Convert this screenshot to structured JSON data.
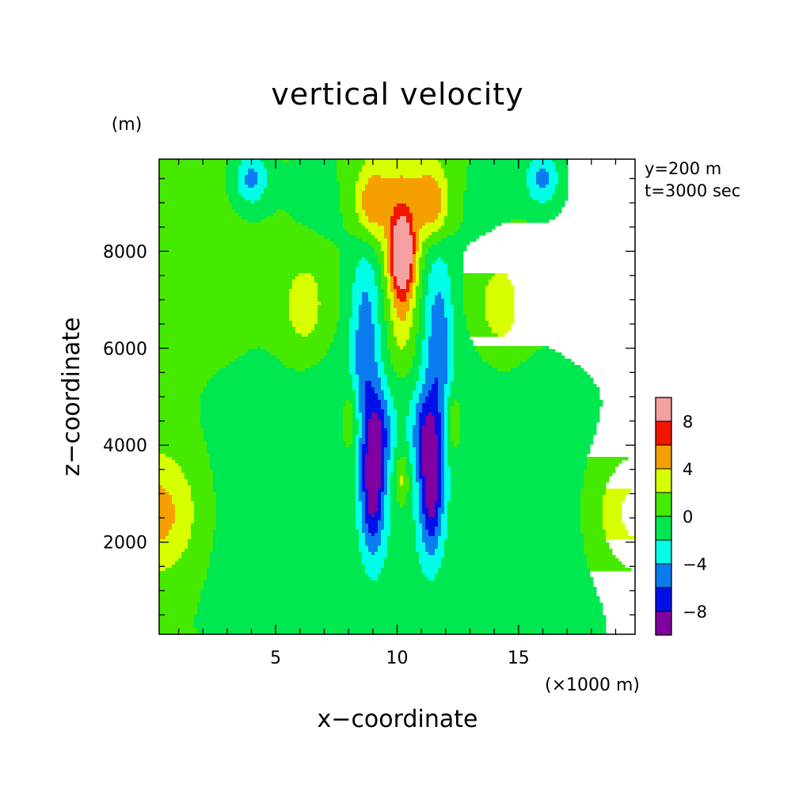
{
  "chart_data": {
    "type": "contour",
    "title": "vertical velocity",
    "xlabel": "x−coordinate",
    "ylabel": "z−coordinate",
    "x_unit": "(×1000 m)",
    "y_unit": "(m)",
    "annotations": [
      "y=200 m",
      "t=3000 sec"
    ],
    "xlim": [
      0.2,
      19.8
    ],
    "ylim": [
      100,
      9900
    ],
    "x_ticks": [
      5,
      10,
      15
    ],
    "x_tick_labels": [
      "5",
      "10",
      "15"
    ],
    "y_ticks": [
      2000,
      4000,
      6000,
      8000
    ],
    "y_tick_labels": [
      "2000",
      "4000",
      "6000",
      "8000"
    ],
    "colorbar": {
      "levels": [
        -10,
        -8,
        -6,
        -4,
        -2,
        0,
        2,
        4,
        6,
        8,
        10
      ],
      "labels": [
        "−8",
        "−4",
        "0",
        "4",
        "8"
      ],
      "label_values": [
        -8,
        -4,
        0,
        4,
        8
      ],
      "colors": [
        "#8000a0",
        "#0010e8",
        "#0a7cf0",
        "#00ffe6",
        "#00e84f",
        "#46ea00",
        "#d8ff00",
        "#f5a000",
        "#f21500",
        "#f5a0a0"
      ]
    },
    "field": {
      "background": 0.5,
      "features": [
        {
          "name": "upper-central-updraft",
          "x": 10.2,
          "z": 8000,
          "sx": 0.4,
          "sz": 600,
          "amp": 10.5
        },
        {
          "name": "upper-central-updraft-stem",
          "x": 10.2,
          "z": 6800,
          "sx": 0.35,
          "sz": 900,
          "amp": 4.0
        },
        {
          "name": "upper-central-updraft-top",
          "x": 10.2,
          "z": 9400,
          "sx": 1.4,
          "sz": 700,
          "amp": 3.2
        },
        {
          "name": "upper-left-lobe",
          "x": 8.9,
          "z": 8900,
          "sx": 0.45,
          "sz": 500,
          "amp": 4.8
        },
        {
          "name": "upper-right-lobe",
          "x": 11.5,
          "z": 8900,
          "sx": 0.45,
          "sz": 500,
          "amp": 4.8
        },
        {
          "name": "left-downdraft-column",
          "x": 8.7,
          "z": 6000,
          "sx": 0.45,
          "sz": 1600,
          "amp": -5.6
        },
        {
          "name": "right-downdraft-column",
          "x": 11.7,
          "z": 6000,
          "sx": 0.45,
          "sz": 1600,
          "amp": -5.6
        },
        {
          "name": "left-lower-downdraft",
          "x": 9.0,
          "z": 3000,
          "sx": 0.35,
          "sz": 900,
          "amp": -7.8
        },
        {
          "name": "right-lower-downdraft",
          "x": 11.4,
          "z": 3000,
          "sx": 0.35,
          "sz": 900,
          "amp": -7.8
        },
        {
          "name": "left-mid-downdraft",
          "x": 9.3,
          "z": 4300,
          "sx": 0.4,
          "sz": 700,
          "amp": -5.2
        },
        {
          "name": "right-mid-downdraft",
          "x": 11.1,
          "z": 4300,
          "sx": 0.4,
          "sz": 700,
          "amp": -5.2
        },
        {
          "name": "left-upper-cyan-spot",
          "x": 4.0,
          "z": 9500,
          "sx": 0.5,
          "sz": 400,
          "amp": -5.0
        },
        {
          "name": "right-upper-cyan-spot",
          "x": 16.0,
          "z": 9500,
          "sx": 0.5,
          "sz": 400,
          "amp": -5.0
        },
        {
          "name": "left-edge-yellow",
          "x": 0.2,
          "z": 2600,
          "sx": 1.2,
          "sz": 900,
          "amp": 4.8
        },
        {
          "name": "right-edge-yellow",
          "x": 19.8,
          "z": 2600,
          "sx": 1.2,
          "sz": 900,
          "amp": 4.8
        },
        {
          "name": "left-mid-yellow",
          "x": 6.2,
          "z": 6800,
          "sx": 0.7,
          "sz": 800,
          "amp": 3.2
        },
        {
          "name": "right-mid-yellow",
          "x": 14.2,
          "z": 6800,
          "sx": 0.7,
          "sz": 800,
          "amp": 3.2
        },
        {
          "name": "left-lower-yellow",
          "x": 8.1,
          "z": 4500,
          "sx": 0.25,
          "sz": 500,
          "amp": 3.0
        },
        {
          "name": "right-lower-yellow",
          "x": 12.3,
          "z": 4500,
          "sx": 0.25,
          "sz": 500,
          "amp": 3.0
        },
        {
          "name": "center-lower-yellow",
          "x": 10.2,
          "z": 3300,
          "sx": 0.2,
          "sz": 400,
          "amp": 3.5
        },
        {
          "name": "center-lower-calm",
          "x": 10.2,
          "z": 1600,
          "sx": 1.5,
          "sz": 1200,
          "amp": -1.3
        },
        {
          "name": "left-lower-calm",
          "x": 4.5,
          "z": 2500,
          "sx": 2.8,
          "sz": 2200,
          "amp": -1.6
        },
        {
          "name": "right-lower-calm",
          "x": 15.9,
          "z": 2500,
          "sx": 2.8,
          "sz": 2200,
          "amp": -1.6
        },
        {
          "name": "left-mid-calm",
          "x": 6.8,
          "z": 5200,
          "sx": 1.2,
          "sz": 1400,
          "amp": -1.1
        },
        {
          "name": "right-mid-calm",
          "x": 13.6,
          "z": 5200,
          "sx": 1.2,
          "sz": 1400,
          "amp": -1.1
        },
        {
          "name": "upper-left-calm",
          "x": 7.0,
          "z": 9200,
          "sx": 1.3,
          "sz": 900,
          "amp": -1.2
        },
        {
          "name": "upper-right-calm",
          "x": 13.4,
          "z": 9200,
          "sx": 1.3,
          "sz": 900,
          "amp": -1.2
        },
        {
          "name": "center-column-calm",
          "x": 10.2,
          "z": 5000,
          "sx": 0.35,
          "sz": 1500,
          "amp": -1.2
        }
      ]
    }
  }
}
